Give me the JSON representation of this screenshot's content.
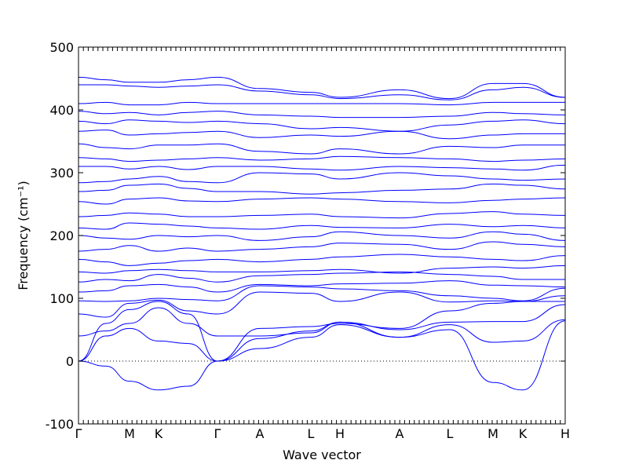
{
  "chart_data": {
    "type": "line",
    "title": "",
    "xlabel": "Wave vector",
    "ylabel": "Frequency (cm⁻¹)",
    "ylim": [
      -100,
      500
    ],
    "yticks": [
      -100,
      0,
      100,
      200,
      300,
      400,
      500
    ],
    "xticks": [
      "Γ",
      "M",
      "K",
      "Γ",
      "A",
      "L",
      "H",
      "A",
      "L",
      "M",
      "K",
      "H"
    ],
    "zero_line": true,
    "grid": false,
    "color": "#0000ff",
    "series": [
      {
        "values": [
          0,
          -8,
          -32,
          -46,
          -40,
          0,
          20,
          38,
          58,
          38,
          50,
          -34,
          -46,
          64
        ]
      },
      {
        "values": [
          0,
          40,
          52,
          32,
          28,
          0,
          36,
          48,
          62,
          38,
          58,
          30,
          32,
          66
        ]
      },
      {
        "values": [
          40,
          48,
          60,
          85,
          60,
          40,
          40,
          45,
          62,
          50,
          62,
          63,
          63,
          90
        ]
      },
      {
        "values": [
          0,
          60,
          82,
          95,
          75,
          0,
          52,
          55,
          60,
          52,
          80,
          92,
          95,
          95
        ]
      },
      {
        "values": [
          75,
          70,
          92,
          97,
          80,
          75,
          110,
          108,
          95,
          110,
          94,
          96,
          95,
          104
        ]
      },
      {
        "values": [
          96,
          95,
          96,
          100,
          98,
          96,
          120,
          118,
          115,
          112,
          104,
          100,
          96,
          116
        ]
      },
      {
        "values": [
          110,
          112,
          120,
          122,
          118,
          110,
          122,
          120,
          123,
          124,
          128,
          121,
          120,
          118
        ]
      },
      {
        "values": [
          126,
          130,
          128,
          138,
          132,
          126,
          136,
          138,
          140,
          142,
          138,
          135,
          130,
          130
        ]
      },
      {
        "values": [
          142,
          140,
          144,
          146,
          144,
          142,
          142,
          144,
          146,
          140,
          148,
          150,
          148,
          152
        ]
      },
      {
        "values": [
          162,
          158,
          152,
          156,
          160,
          162,
          158,
          162,
          166,
          170,
          166,
          162,
          160,
          168
        ]
      },
      {
        "values": [
          175,
          178,
          184,
          175,
          180,
          175,
          178,
          182,
          188,
          186,
          178,
          190,
          186,
          182
        ]
      },
      {
        "values": [
          200,
          196,
          194,
          200,
          198,
          200,
          192,
          198,
          206,
          200,
          196,
          206,
          202,
          192
        ]
      },
      {
        "values": [
          212,
          210,
          220,
          218,
          215,
          212,
          210,
          216,
          213,
          212,
          218,
          214,
          216,
          212
        ]
      },
      {
        "values": [
          230,
          232,
          236,
          234,
          230,
          230,
          232,
          234,
          230,
          228,
          235,
          238,
          234,
          232
        ]
      },
      {
        "values": [
          254,
          250,
          258,
          260,
          255,
          254,
          258,
          260,
          258,
          254,
          252,
          256,
          258,
          260
        ]
      },
      {
        "values": [
          270,
          272,
          280,
          282,
          275,
          270,
          270,
          266,
          268,
          272,
          274,
          282,
          280,
          274
        ]
      },
      {
        "values": [
          284,
          286,
          290,
          294,
          286,
          284,
          300,
          298,
          290,
          300,
          295,
          290,
          288,
          290
        ]
      },
      {
        "values": [
          310,
          310,
          306,
          310,
          305,
          310,
          310,
          306,
          304,
          310,
          308,
          306,
          304,
          312
        ]
      },
      {
        "values": [
          324,
          322,
          318,
          320,
          322,
          324,
          320,
          322,
          326,
          324,
          322,
          318,
          320,
          322
        ]
      },
      {
        "values": [
          346,
          340,
          338,
          344,
          344,
          346,
          334,
          330,
          338,
          330,
          342,
          340,
          344,
          344
        ]
      },
      {
        "values": [
          366,
          368,
          360,
          362,
          364,
          366,
          356,
          360,
          358,
          366,
          354,
          360,
          362,
          362
        ]
      },
      {
        "values": [
          382,
          378,
          384,
          382,
          380,
          382,
          378,
          370,
          372,
          366,
          376,
          382,
          384,
          378
        ]
      },
      {
        "values": [
          398,
          394,
          396,
          392,
          396,
          398,
          392,
          390,
          388,
          388,
          390,
          396,
          394,
          392
        ]
      },
      {
        "values": [
          410,
          412,
          408,
          408,
          412,
          410,
          410,
          410,
          410,
          410,
          408,
          412,
          412,
          412
        ]
      },
      {
        "values": [
          440,
          440,
          438,
          436,
          438,
          440,
          430,
          424,
          418,
          424,
          416,
          432,
          436,
          420
        ]
      },
      {
        "values": [
          452,
          448,
          444,
          444,
          448,
          452,
          434,
          428,
          420,
          432,
          418,
          442,
          442,
          420
        ]
      }
    ]
  }
}
